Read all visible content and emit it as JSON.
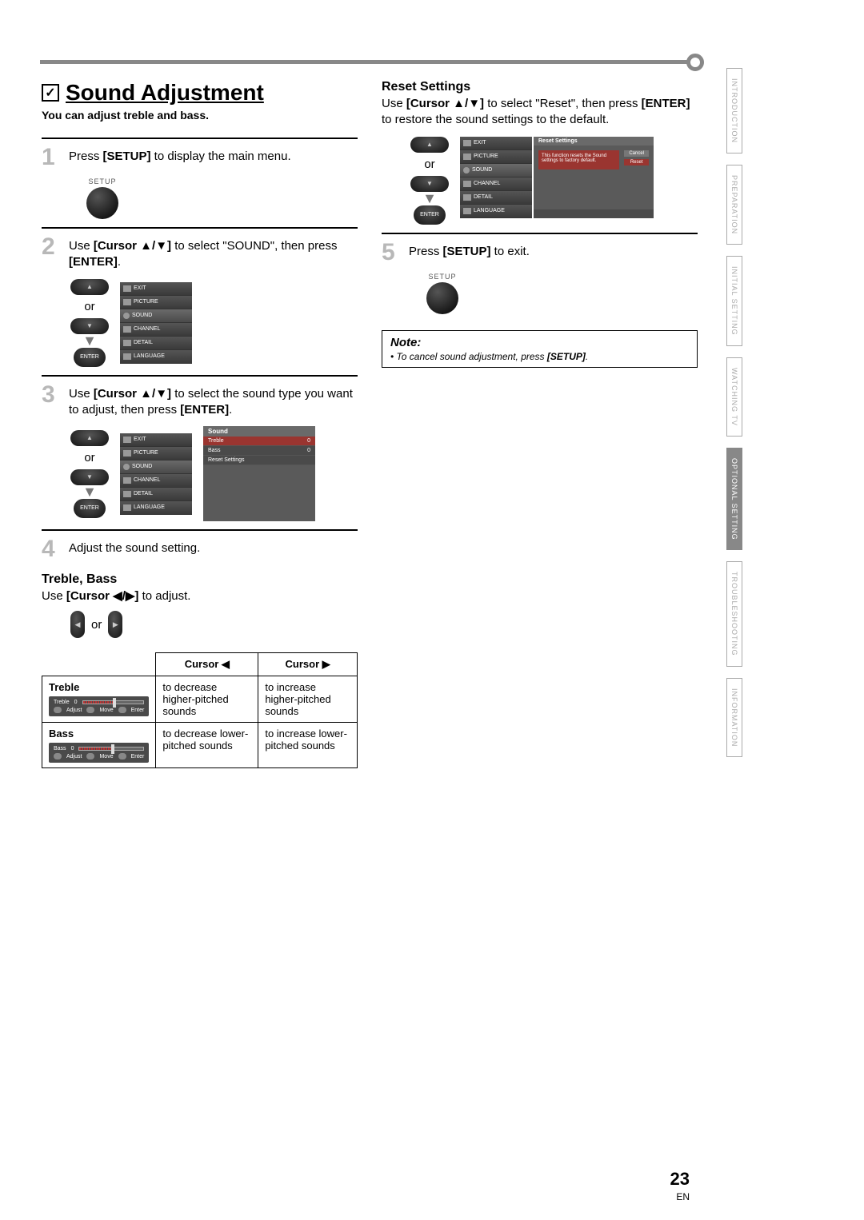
{
  "page": {
    "title": "Sound Adjustment",
    "subtitle": "You can adjust treble and bass.",
    "page_number": "23",
    "page_lang": "EN"
  },
  "steps": {
    "s1": {
      "num": "1",
      "text_pre": "Press ",
      "kw": "[SETUP]",
      "text_post": " to display the main menu."
    },
    "s2": {
      "num": "2",
      "text_pre": "Use ",
      "kw": "[Cursor ▲/▼]",
      "text_mid": " to select \"SOUND\", then press ",
      "kw2": "[ENTER]",
      "text_post": "."
    },
    "s3": {
      "num": "3",
      "text_pre": "Use ",
      "kw": "[Cursor ▲/▼]",
      "text_mid": " to select the sound type you want to adjust, then press ",
      "kw2": "[ENTER]",
      "text_post": "."
    },
    "s4": {
      "num": "4",
      "text": "Adjust the sound setting."
    },
    "s5": {
      "num": "5",
      "text_pre": "Press ",
      "kw": "[SETUP]",
      "text_post": " to exit."
    }
  },
  "labels": {
    "setup": "SETUP",
    "or": "or",
    "enter": "ENTER"
  },
  "menu": {
    "exit": "EXIT",
    "picture": "PICTURE",
    "sound": "SOUND",
    "channel": "CHANNEL",
    "detail": "DETAIL",
    "language": "LANGUAGE"
  },
  "sound_panel": {
    "header": "Sound",
    "rows": [
      {
        "label": "Treble",
        "value": "0"
      },
      {
        "label": "Bass",
        "value": "0"
      },
      {
        "label": "Reset Settings",
        "value": ""
      }
    ]
  },
  "treble_bass": {
    "heading": "Treble, Bass",
    "instr_pre": "Use ",
    "instr_kw": "[Cursor ◀/▶]",
    "instr_post": " to adjust."
  },
  "adjust_table": {
    "headers": [
      "",
      "Cursor ◀",
      "Cursor ▶"
    ],
    "rows": [
      {
        "label": "Treble",
        "osd_label": "Treble",
        "left": "to decrease higher-pitched sounds",
        "right": "to increase higher-pitched sounds"
      },
      {
        "label": "Bass",
        "osd_label": "Bass",
        "left": "to decrease lower-pitched sounds",
        "right": "to increase lower-pitched sounds"
      }
    ],
    "osd_val": "0",
    "osd_adjust": "Adjust",
    "osd_move": "Move",
    "osd_enter": "Enter"
  },
  "reset": {
    "heading": "Reset Settings",
    "instr_pre": "Use ",
    "instr_kw": "[Cursor ▲/▼]",
    "instr_mid": " to select \"Reset\", then press ",
    "instr_kw2": "[ENTER]",
    "instr_post": " to restore the sound settings to the default.",
    "panel_header": "Reset Settings",
    "panel_text": "This function resets the Sound settings to factory default.",
    "btn_cancel": "Cancel",
    "btn_reset": "Reset"
  },
  "note": {
    "title": "Note:",
    "text_pre": "• To cancel sound adjustment, press ",
    "kw": "[SETUP]",
    "text_post": "."
  },
  "side_tabs": [
    "INTRODUCTION",
    "PREPARATION",
    "INITIAL SETTING",
    "WATCHING TV",
    "OPTIONAL SETTING",
    "TROUBLESHOOTING",
    "INFORMATION"
  ],
  "colors": {
    "accent": "#9a3530",
    "panel_bg": "#4a4a4a",
    "step_num": "#b8b8b8"
  }
}
